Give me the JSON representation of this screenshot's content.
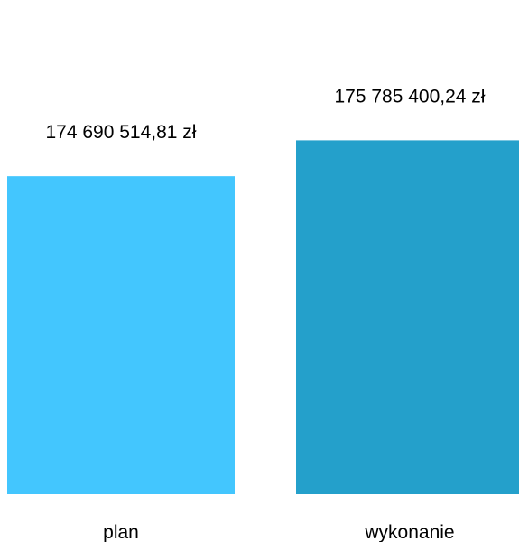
{
  "chart_data": {
    "type": "bar",
    "categories": [
      "plan",
      "wykonanie"
    ],
    "values": [
      174690514.81,
      175785400.24
    ],
    "value_labels": [
      "174 690 514,81 zł",
      "175 785 400,24 zł"
    ],
    "colors": [
      "#43c6fe",
      "#24a0cb"
    ],
    "title": "",
    "xlabel": "",
    "ylabel": "",
    "ylim": [
      165000000,
      178000000
    ],
    "grid": false,
    "legend": "none"
  }
}
